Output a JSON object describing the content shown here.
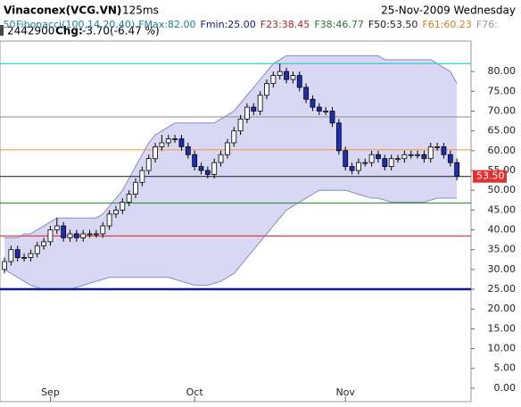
{
  "header": {
    "title": "Vinaconex(VCG.VN)",
    "timing": "125ms",
    "date": "25-Nov-2009 Wednesday",
    "volume": "2442900",
    "change_label": "Chg:",
    "change": "-3.70(-6.47 %)"
  },
  "chart_data": {
    "type": "candlestick",
    "ylim": [
      -3.4,
      87.7
    ],
    "yticks": [
      {
        "value": 0,
        "label": "0.00"
      },
      {
        "value": 5,
        "label": "5.00"
      },
      {
        "value": 10,
        "label": "10.00"
      },
      {
        "value": 15,
        "label": "15.00"
      },
      {
        "value": 20,
        "label": "20.00"
      },
      {
        "value": 25,
        "label": "25.00"
      },
      {
        "value": 30,
        "label": "30.00"
      },
      {
        "value": 35,
        "label": "35.00"
      },
      {
        "value": 40,
        "label": "40.00"
      },
      {
        "value": 45,
        "label": "45.00"
      },
      {
        "value": 50,
        "label": "50.00"
      },
      {
        "value": 55,
        "label": "55.00"
      },
      {
        "value": 60,
        "label": "60.00"
      },
      {
        "value": 65,
        "label": "65.00"
      },
      {
        "value": 70,
        "label": "70.00"
      },
      {
        "value": 75,
        "label": "75.00"
      },
      {
        "value": 80,
        "label": "80.00"
      }
    ],
    "xticks": [
      {
        "value": 7,
        "label": "Sep"
      },
      {
        "value": 29,
        "label": "Oct"
      },
      {
        "value": 52,
        "label": "Nov"
      }
    ],
    "up_color": "#ffffff",
    "down_color": "#1c2fb4",
    "open": [
      30,
      32,
      35,
      33,
      33,
      34,
      36,
      37,
      40,
      41,
      38,
      39,
      38,
      39,
      39,
      39,
      41,
      44,
      45,
      47,
      49,
      52,
      55,
      58,
      61,
      62,
      63,
      63,
      61,
      59,
      56,
      55,
      54,
      57,
      59,
      62,
      65,
      68,
      71,
      70,
      74,
      77,
      79,
      80,
      78,
      79,
      76,
      73,
      71,
      70,
      70,
      67,
      60,
      56,
      55,
      57,
      57,
      59,
      58,
      56,
      58,
      58,
      59,
      59,
      59,
      58,
      61,
      61,
      59,
      57
    ],
    "high": [
      33,
      36,
      36,
      34,
      35,
      37,
      38,
      41,
      43,
      42,
      40,
      40,
      40,
      40,
      40,
      42,
      45,
      46,
      48,
      50,
      53,
      56,
      59,
      62,
      64,
      64,
      64,
      64,
      62,
      60,
      57,
      56,
      58,
      60,
      63,
      66,
      69,
      72,
      72,
      75,
      78,
      80,
      82,
      81,
      80,
      80,
      77,
      74,
      72,
      71,
      71,
      68,
      61,
      57,
      58,
      58,
      60,
      60,
      59,
      59,
      59,
      60,
      60,
      60,
      60,
      62,
      62,
      62,
      60,
      58
    ],
    "low": [
      29,
      31,
      32,
      32,
      32,
      33,
      35,
      36,
      39,
      37,
      37,
      37,
      37,
      38,
      38,
      38,
      40,
      43,
      44,
      46,
      48,
      51,
      54,
      57,
      60,
      61,
      62,
      60,
      58,
      55,
      54,
      53,
      53,
      56,
      58,
      61,
      64,
      67,
      69,
      69,
      73,
      76,
      78,
      77,
      77,
      75,
      72,
      70,
      69,
      69,
      66,
      59,
      55,
      54,
      54,
      56,
      56,
      57,
      55,
      55,
      57,
      57,
      58,
      58,
      57,
      57,
      60,
      58,
      56,
      52.5
    ],
    "close": [
      32,
      35,
      33,
      33,
      34,
      36,
      37,
      40,
      41,
      38,
      39,
      38,
      39,
      39,
      39,
      41,
      44,
      45,
      47,
      49,
      52,
      55,
      58,
      61,
      62,
      63,
      63,
      61,
      59,
      56,
      55,
      54,
      57,
      59,
      62,
      65,
      68,
      71,
      70,
      74,
      77,
      79,
      80,
      78,
      79,
      76,
      73,
      71,
      70,
      70,
      67,
      60,
      56,
      55,
      57,
      57,
      59,
      58,
      56,
      58,
      58,
      59,
      59,
      59,
      58,
      61,
      61,
      59,
      57,
      53.5
    ],
    "band": {
      "color": "#c8c8f0",
      "upper": [
        38,
        38,
        38,
        39,
        39,
        40,
        41,
        42,
        43,
        43,
        43,
        43,
        43,
        43,
        43,
        44,
        46,
        48,
        50,
        53,
        56,
        59,
        62,
        64,
        65,
        66,
        67,
        67,
        67,
        67,
        67,
        67,
        67,
        68,
        69,
        70,
        72,
        74,
        76,
        78,
        80,
        82,
        83,
        84,
        84,
        84,
        84,
        84,
        84,
        84,
        84,
        84,
        84,
        84,
        84,
        84,
        84,
        84,
        83,
        83,
        83,
        83,
        83,
        83,
        83,
        83,
        82,
        81,
        80,
        77
      ],
      "lower": [
        30,
        29,
        28,
        27,
        26,
        25.5,
        25,
        25,
        25,
        25,
        25,
        25.5,
        26,
        26.5,
        27,
        27.5,
        28,
        28,
        28,
        28,
        28,
        28,
        28,
        28,
        28,
        28,
        27.5,
        27,
        26.5,
        26,
        26,
        26,
        26.5,
        27,
        28,
        29,
        31,
        33,
        35,
        37,
        39,
        41,
        43,
        45,
        46,
        47,
        48,
        49,
        50,
        50,
        50,
        50,
        50,
        49.5,
        49,
        48.5,
        48,
        48,
        47.5,
        47,
        47,
        47,
        47,
        47,
        47,
        47.5,
        48,
        48,
        48,
        48
      ]
    },
    "fibonacci": {
      "prefix": ".50",
      "label": "Fibonacci(100,14,20,40)",
      "levels": [
        {
          "label": "FMax:82.00",
          "value": 82,
          "color": "#33cccc",
          "text_color": "#1a7f9a"
        },
        {
          "label": "Fmin:25.00",
          "value": 25,
          "color": "#0a1a8c",
          "text_color": "#0a1a8c"
        },
        {
          "label": "F23:38.45",
          "value": 38.45,
          "color": "#e04040",
          "text_color": "#c02020"
        },
        {
          "label": "F38:46.77",
          "value": 46.77,
          "color": "#3a9a3a",
          "text_color": "#2a7a2a"
        },
        {
          "label": "F50:53.50",
          "value": 53.5,
          "color": "#333333",
          "text_color": "#222222"
        },
        {
          "label": "F61:60.23",
          "value": 60.23,
          "color": "#f0a040",
          "text_color": "#d08020"
        },
        {
          "label": "F76:",
          "value": 68.55,
          "color": "#999999",
          "text_color": "#999999"
        }
      ]
    },
    "last": {
      "value": 53.5,
      "label": "53.50",
      "color": "#e03030"
    }
  }
}
